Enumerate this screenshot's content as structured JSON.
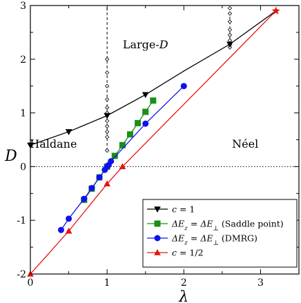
{
  "chart_data": {
    "type": "line",
    "xlabel": "λ",
    "ylabel": "D",
    "xlim": [
      0,
      3.5
    ],
    "ylim": [
      -2,
      3
    ],
    "x_ticks": [
      0,
      1,
      2,
      3
    ],
    "y_ticks": [
      -2,
      -1,
      0,
      1,
      2,
      3
    ],
    "grid": false,
    "legend_position": "bottom-right",
    "region_labels": [
      {
        "text": "Large-D",
        "x": 1.5,
        "y": 2.2
      },
      {
        "text": "Haldane",
        "x": 0.3,
        "y": 0.35
      },
      {
        "text": "Néel",
        "x": 2.8,
        "y": 0.35
      }
    ],
    "reference_lines": [
      {
        "id": "zero",
        "orientation": "horizontal",
        "value": 0,
        "style": "dotted"
      },
      {
        "id": "v1",
        "orientation": "vertical",
        "value": 1.0,
        "range": [
          0.3,
          3.0
        ],
        "style": "dashed",
        "markers": [
          [
            1.0,
            2.0
          ],
          [
            1.0,
            1.75
          ],
          [
            1.0,
            1.5
          ],
          [
            1.0,
            1.25
          ],
          [
            1.0,
            1.1
          ],
          [
            1.0,
            1.0
          ],
          [
            1.0,
            0.85
          ],
          [
            1.0,
            0.75
          ],
          [
            1.0,
            0.65
          ],
          [
            1.0,
            0.55
          ],
          [
            1.0,
            0.3
          ]
        ]
      },
      {
        "id": "v2",
        "orientation": "vertical",
        "value": 2.6,
        "range": [
          2.2,
          3.0
        ],
        "style": "dashed",
        "markers": [
          [
            2.6,
            2.95
          ],
          [
            2.6,
            2.85
          ],
          [
            2.6,
            2.7
          ],
          [
            2.6,
            2.55
          ],
          [
            2.6,
            2.45
          ],
          [
            2.6,
            2.35
          ],
          [
            2.6,
            2.27
          ],
          [
            2.6,
            2.22
          ]
        ]
      }
    ],
    "series": [
      {
        "name": "c = 1",
        "color": "#000000",
        "marker": "triangle-down",
        "x": [
          0,
          0.5,
          1.0,
          1.5,
          2.0,
          2.6,
          3.2
        ],
        "y": [
          0.4,
          0.65,
          0.95,
          1.34,
          1.78,
          2.28,
          2.9
        ],
        "marked": [
          true,
          true,
          true,
          true,
          false,
          true,
          false
        ]
      },
      {
        "name": "ΔE_z = ΔE_⊥ (Saddle point)",
        "color": "#1a8f1a",
        "marker": "square",
        "x": [
          0.7,
          0.8,
          0.9,
          1.0,
          1.1,
          1.2,
          1.3,
          1.4,
          1.5,
          1.6
        ],
        "y": [
          -0.62,
          -0.41,
          -0.2,
          0.0,
          0.2,
          0.4,
          0.6,
          0.81,
          1.02,
          1.23
        ]
      },
      {
        "name": "ΔE_z = ΔE_⊥ (DMRG)",
        "color": "#1010ee",
        "marker": "circle",
        "x": [
          0.4,
          0.5,
          0.7,
          0.8,
          0.9,
          0.97,
          1.0,
          1.02,
          1.05,
          1.5,
          2.0
        ],
        "y": [
          -1.18,
          -0.97,
          -0.6,
          -0.4,
          -0.2,
          -0.06,
          0.0,
          0.03,
          0.1,
          0.8,
          1.5
        ]
      },
      {
        "name": "c = 1/2",
        "color": "#e81010",
        "marker": "triangle-up",
        "x": [
          0,
          0.5,
          1.0,
          1.2,
          3.2
        ],
        "y": [
          -2.0,
          -1.2,
          -0.32,
          0.0,
          2.9
        ],
        "marked": [
          true,
          true,
          true,
          true,
          false
        ]
      }
    ],
    "endpoint_marker": {
      "x": 3.2,
      "y": 2.9,
      "color": "#e81010",
      "symbol": "star"
    }
  },
  "legend": {
    "items": [
      {
        "id": "c1",
        "parts": [
          {
            "t": "c",
            "i": true
          },
          {
            "t": " = 1"
          }
        ]
      },
      {
        "id": "saddle",
        "parts": [
          {
            "t": "ΔE",
            "i": true
          },
          {
            "t": "z",
            "sub": true,
            "i": true
          },
          {
            "t": " = ΔE",
            "i": true
          },
          {
            "t": "⊥",
            "sub": true
          },
          {
            "t": " (Saddle point)"
          }
        ]
      },
      {
        "id": "dmrg",
        "parts": [
          {
            "t": "ΔE",
            "i": true
          },
          {
            "t": "z",
            "sub": true,
            "i": true
          },
          {
            "t": " = ΔE",
            "i": true
          },
          {
            "t": "⊥",
            "sub": true
          },
          {
            "t": " (DMRG)"
          }
        ]
      },
      {
        "id": "c12",
        "parts": [
          {
            "t": "c",
            "i": true
          },
          {
            "t": " = 1/2"
          }
        ]
      }
    ]
  }
}
